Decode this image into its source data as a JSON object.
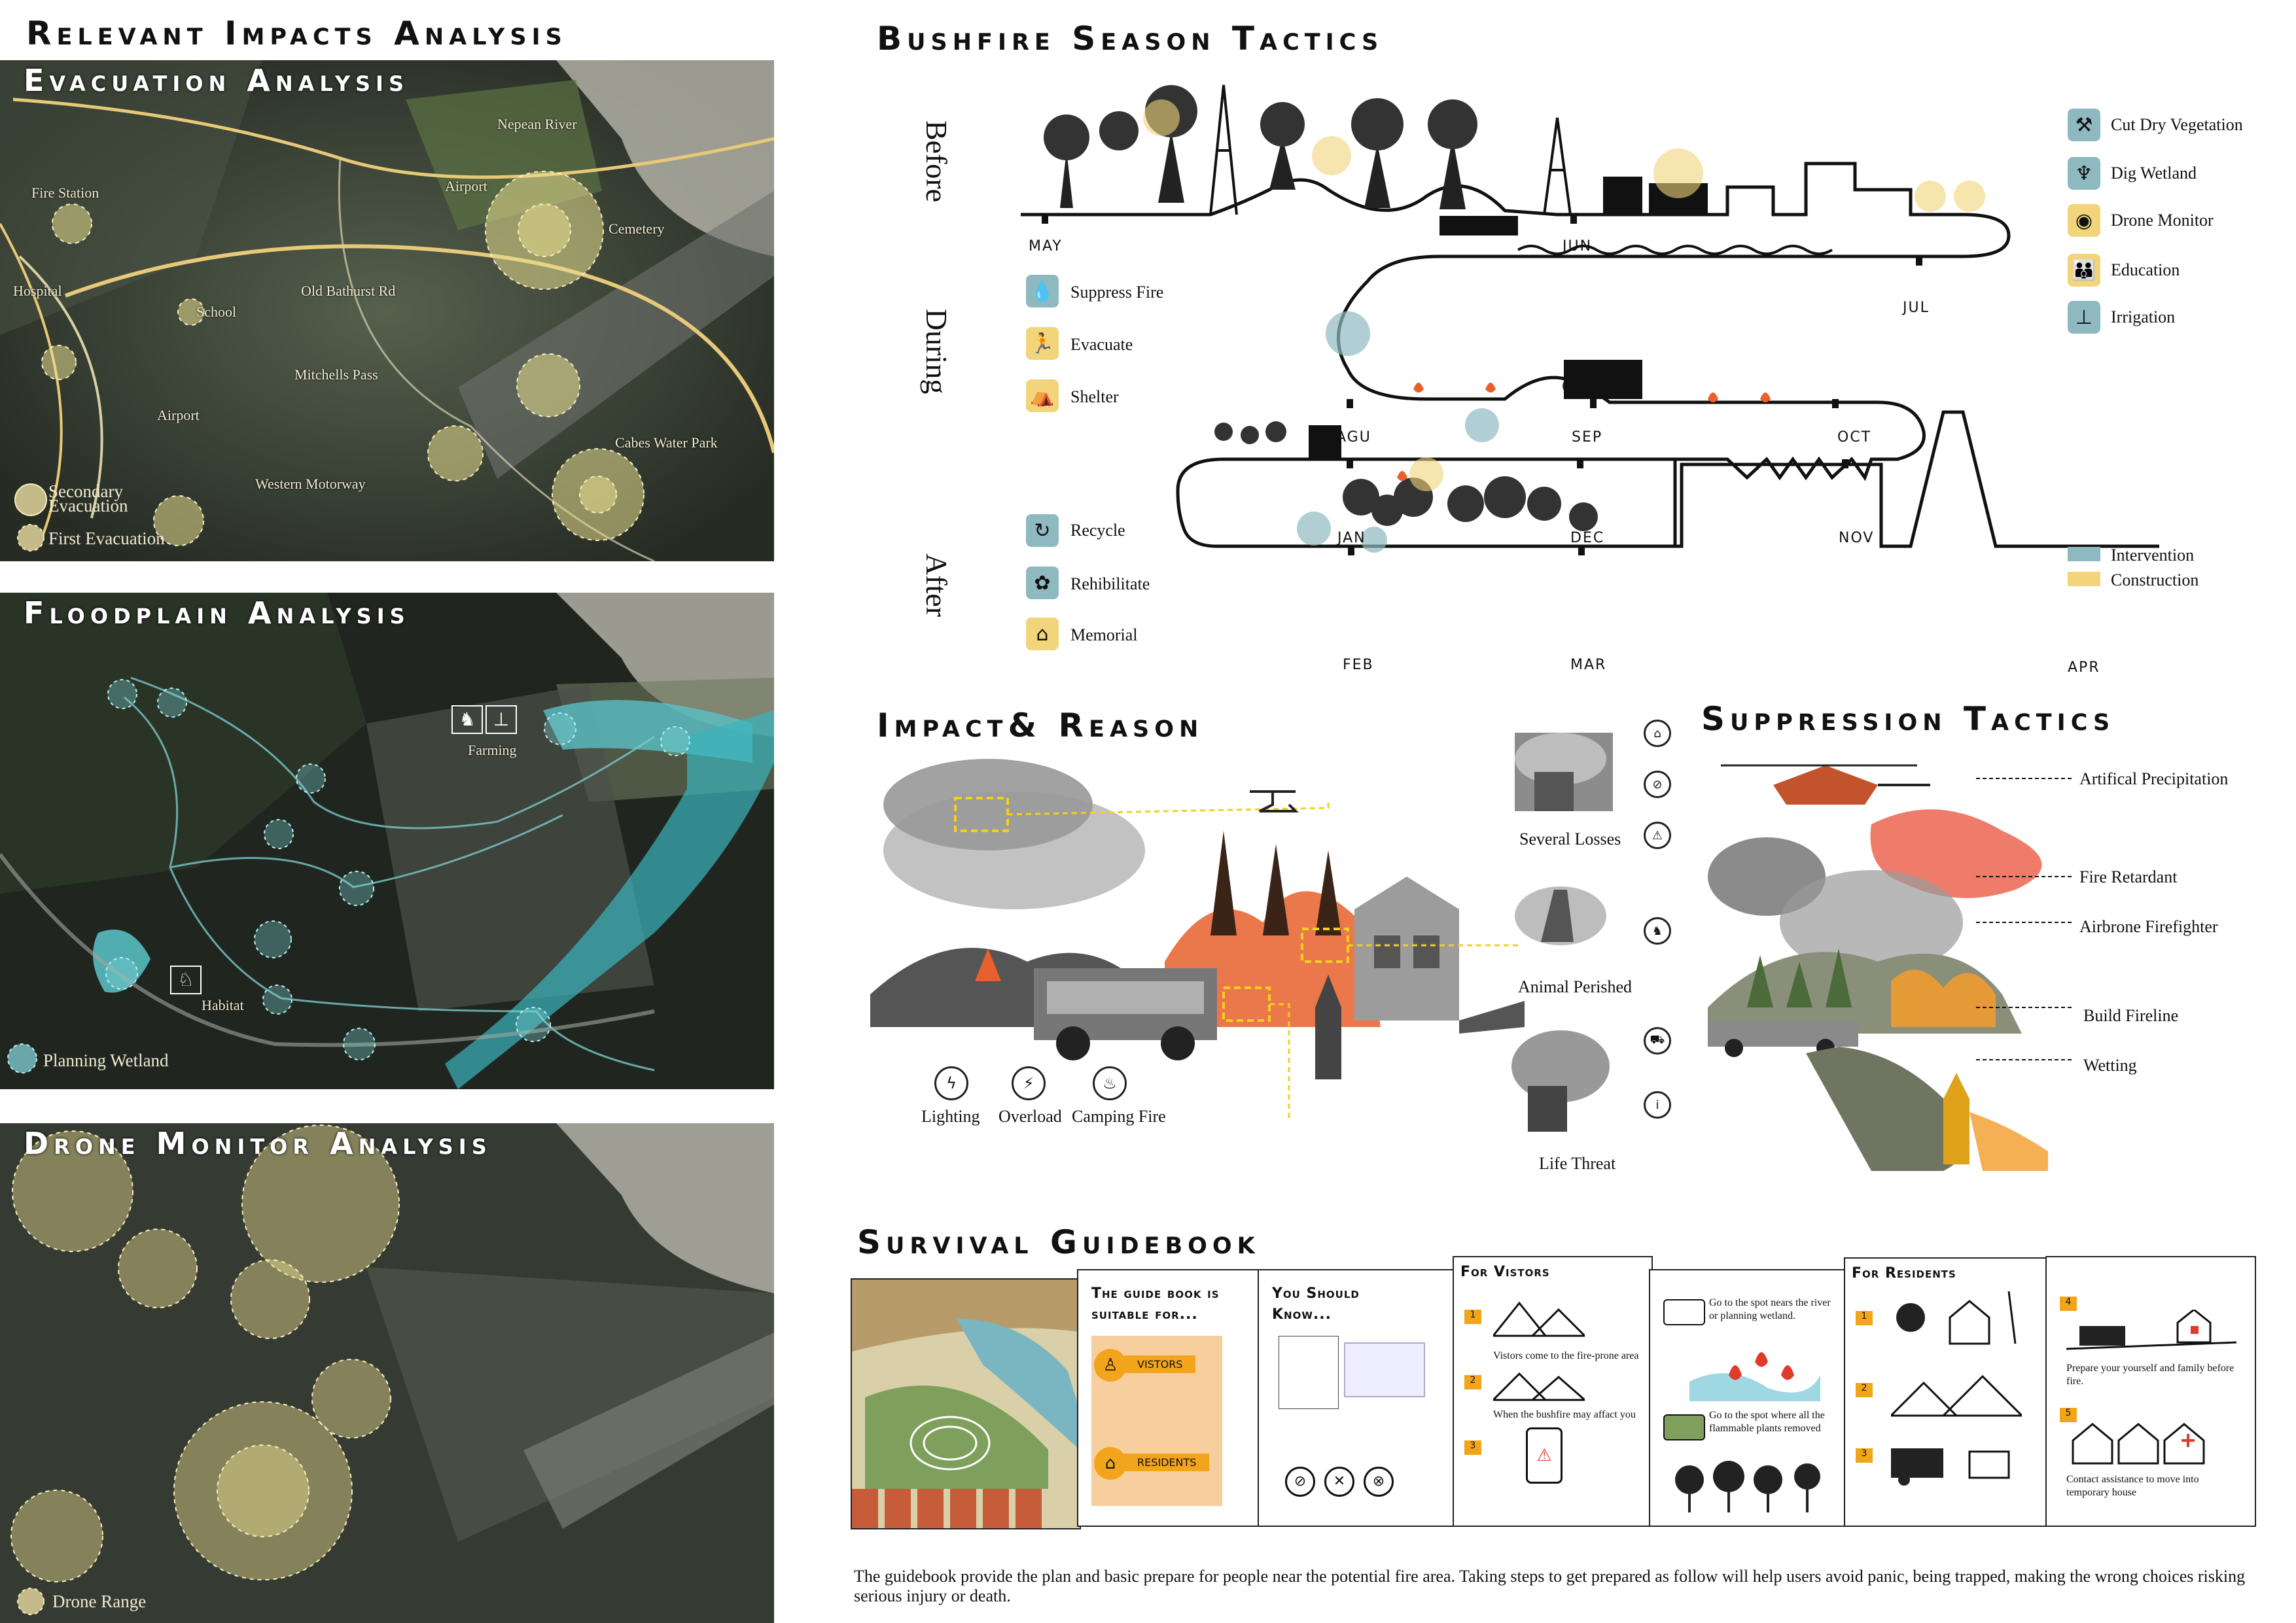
{
  "headings": {
    "relevant": "Relevant Impacts Analysis",
    "bushfire": "Bushfire Season Tactics",
    "impact": "Impact& Reason",
    "suppression": "Suppression Tactics",
    "guidebook": "Survival Guidebook"
  },
  "maps": {
    "evacuation": {
      "title": "Evacuation Analysis",
      "legend_secondary": "Secondary Evacuation",
      "legend_first": "First Evacuation",
      "labels": [
        "Fire Station",
        "Hospital",
        "School",
        "Airport",
        "Airport",
        "Cemetery",
        "Cabes Water Park",
        "Old Bathurst Rd",
        "Mitchells Pass",
        "Western Motorway",
        "Nepean River"
      ]
    },
    "floodplain": {
      "title": "Floodplain Analysis",
      "legend": "Planning Wetland",
      "labels": [
        "Farming",
        "Habitat"
      ]
    },
    "drone": {
      "title": "Drone Monitor Analysis",
      "legend": "Drone Range"
    }
  },
  "season": {
    "phases": [
      "Before",
      "During",
      "After"
    ],
    "months": [
      "MAY",
      "JUN",
      "JUL",
      "AGU",
      "SEP",
      "OCT",
      "JAN",
      "DEC",
      "NOV",
      "FEB",
      "MAR",
      "APR"
    ],
    "left_icons": [
      {
        "label": "Suppress Fire",
        "icon": "droplet-icon",
        "glyph": "💧",
        "color": "#8fb9c0"
      },
      {
        "label": "Evacuate",
        "icon": "running-person-icon",
        "glyph": "🏃",
        "color": "#f2d47a"
      },
      {
        "label": "Shelter",
        "icon": "tent-icon",
        "glyph": "⛺",
        "color": "#f2d47a"
      },
      {
        "label": "Recycle",
        "icon": "recycle-icon",
        "glyph": "↻",
        "color": "#8fb9c0"
      },
      {
        "label": "Rehibilitate",
        "icon": "rehabilitate-icon",
        "glyph": "✿",
        "color": "#8fb9c0"
      },
      {
        "label": "Memorial",
        "icon": "memorial-icon",
        "glyph": "⌂",
        "color": "#f2d47a"
      }
    ],
    "right_icons": [
      {
        "label": "Cut Dry Vegetation",
        "icon": "axe-icon",
        "glyph": "⚒",
        "color": "#8fb9c0"
      },
      {
        "label": "Dig Wetland",
        "icon": "wetland-icon",
        "glyph": "♆",
        "color": "#8fb9c0"
      },
      {
        "label": "Drone Monitor",
        "icon": "eye-icon",
        "glyph": "◉",
        "color": "#f2d47a"
      },
      {
        "label": "Education",
        "icon": "people-icon",
        "glyph": "👪",
        "color": "#f2d47a"
      },
      {
        "label": "Irrigation",
        "icon": "irrigation-icon",
        "glyph": "⊥",
        "color": "#8fb9c0"
      }
    ],
    "legend": [
      {
        "label": "Intervention",
        "color": "#8fb9c0"
      },
      {
        "label": "Construction",
        "color": "#f2d47a"
      }
    ]
  },
  "impact": {
    "causes": [
      "Lighting",
      "Overload",
      "Camping Fire"
    ],
    "results": [
      "Several Losses",
      "Animal Perished",
      "Life Threat"
    ]
  },
  "suppression": {
    "tactics": [
      "Artifical Precipitation",
      "Fire Retardant",
      "Airbrone Firefighter",
      "Build Fireline",
      "Wetting"
    ]
  },
  "guidebook": {
    "p2_title": "The guide book is suitable for...",
    "p2_visitors": "VISTORS",
    "p2_residents": "RESIDENTS",
    "p3_title": "You Should Know...",
    "p4_title": "For Vistors",
    "p4_step1": "Vistors come to the fire-prone area",
    "p4_step2": "When the bushfire may affact you",
    "p5_step1": "Go to the spot nears the river or planning wetland.",
    "p5_step2": "Go to the spot where all the flammable plants removed",
    "p6_title": "For Residents",
    "p7_step1": "Prepare your yourself and family before fire.",
    "p7_step2": "Contact assistance to move into temporary house",
    "note": "The guidebook provide the plan and basic prepare for people near the potential fire area. Taking steps to get prepared as follow will help users avoid panic, being trapped, making the wrong choices risking serious injury or death."
  }
}
